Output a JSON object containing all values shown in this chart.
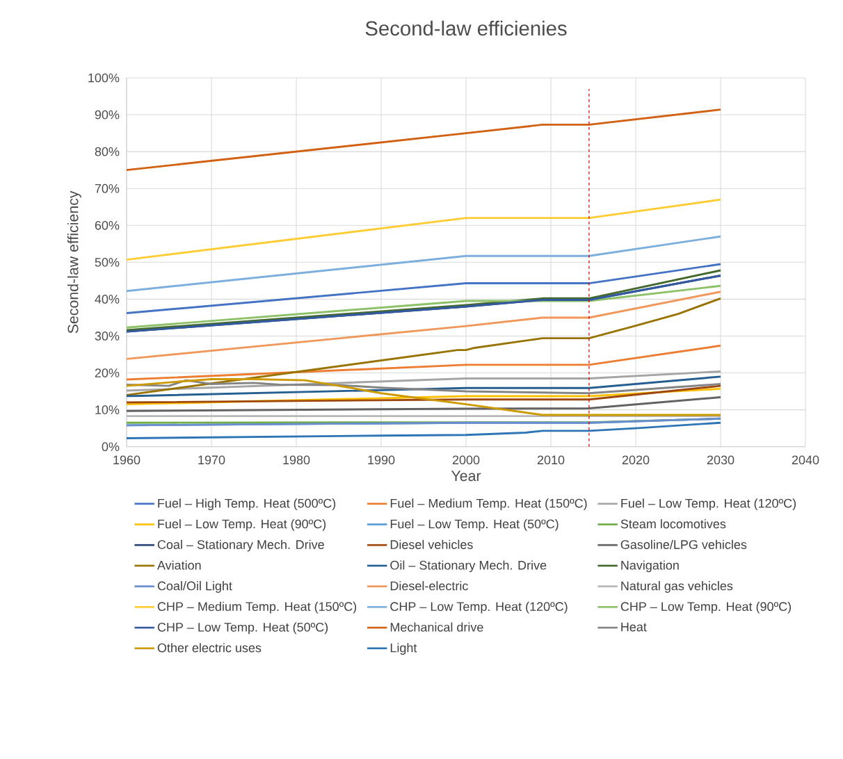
{
  "chart_data": {
    "type": "line",
    "title": "Second-law efficienies",
    "xlabel": "Year",
    "ylabel": "Second-law efficiency",
    "xlim": [
      1960,
      2040
    ],
    "xticks": [
      1960,
      1970,
      1980,
      1990,
      2000,
      2010,
      2020,
      2030,
      2040
    ],
    "ylim": [
      0,
      100
    ],
    "yticks": [
      {
        "value": 0,
        "label": "0%"
      },
      {
        "value": 10,
        "label": "10%"
      },
      {
        "value": 20,
        "label": "20%"
      },
      {
        "value": 30,
        "label": "30%"
      },
      {
        "value": 40,
        "label": "40%"
      },
      {
        "value": 50,
        "label": "50%"
      },
      {
        "value": 60,
        "label": "60%"
      },
      {
        "value": 70,
        "label": "70%"
      },
      {
        "value": 80,
        "label": "80%"
      },
      {
        "value": 90,
        "label": "90%"
      },
      {
        "value": 100,
        "label": "100%"
      }
    ],
    "grid": true,
    "legend": "bottom",
    "marker": "none",
    "line_style": "solid",
    "ref_lines": [
      {
        "axis": "x",
        "value": 2014.5,
        "color": "#C00000",
        "line_style": "dashed"
      }
    ],
    "series": [
      {
        "name": "Fuel – High Temp. Heat (500ºC)",
        "color": "#4472C4",
        "x": [
          1960,
          2000,
          2014.5,
          2030
        ],
        "values": [
          36.2,
          44.3,
          44.3,
          49.5
        ]
      },
      {
        "name": "Fuel – Medium Temp. Heat (150ºC)",
        "color": "#ED7D31",
        "x": [
          1960,
          2000,
          2014.5,
          2030
        ],
        "values": [
          18.2,
          22.2,
          22.2,
          27.4
        ]
      },
      {
        "name": "Fuel – Low Temp. Heat (120ºC)",
        "color": "#A5A5A5",
        "x": [
          1960,
          2000,
          2014.5,
          2030
        ],
        "values": [
          15.2,
          18.5,
          18.5,
          20.4
        ]
      },
      {
        "name": "Fuel – Low Temp. Heat (90ºC)",
        "color": "#FFC000",
        "x": [
          1960,
          2000,
          2014.5,
          2030
        ],
        "values": [
          11.5,
          13.7,
          13.7,
          15.7
        ]
      },
      {
        "name": "Fuel – Low Temp. Heat (50ºC)",
        "color": "#5B9BD5",
        "x": [
          1960,
          2000,
          2014.5,
          2030
        ],
        "values": [
          5.8,
          6.5,
          6.5,
          7.6
        ]
      },
      {
        "name": "Steam locomotives",
        "color": "#70AD47",
        "x": [
          1960,
          2000,
          2014.5,
          2030
        ],
        "values": [
          6.5,
          6.6,
          6.6,
          7.6
        ]
      },
      {
        "name": "Coal – Stationary Mech. Drive",
        "color": "#264478",
        "x": [
          1960,
          2000,
          2009,
          2014.5,
          2030
        ],
        "values": [
          31.2,
          38.0,
          39.8,
          39.8,
          46.4
        ]
      },
      {
        "name": "Diesel vehicles",
        "color": "#9E480E",
        "x": [
          1960,
          2000,
          2014.5,
          2030
        ],
        "values": [
          12,
          12.8,
          12.8,
          16.5
        ]
      },
      {
        "name": "Gasoline/LPG vehicles",
        "color": "#636363",
        "x": [
          1960,
          2000,
          2014.5,
          2030
        ],
        "values": [
          9.7,
          10.3,
          10.4,
          13.4
        ]
      },
      {
        "name": "Aviation",
        "color": "#997300",
        "x": [
          1960,
          1999,
          2000,
          2001,
          2009,
          2014.5,
          2020,
          2025,
          2030
        ],
        "values": [
          14,
          26.2,
          26.2,
          26.8,
          29.4,
          29.4,
          32.8,
          36,
          40.2
        ]
      },
      {
        "name": "Oil – Stationary Mech. Drive",
        "color": "#255E91",
        "x": [
          1960,
          2000,
          2014.5,
          2030
        ],
        "values": [
          13.7,
          15.9,
          15.9,
          19
        ]
      },
      {
        "name": "Navigation",
        "color": "#43682B",
        "x": [
          1960,
          2000,
          2009,
          2014.5,
          2030
        ],
        "values": [
          31.6,
          38.4,
          40.2,
          40.2,
          47.8
        ]
      },
      {
        "name": "Coal/Oil Light",
        "color": "#698ED0",
        "x": [
          1960,
          2000,
          2014.5,
          2030
        ],
        "values": [
          5.8,
          6.5,
          6.5,
          7.6
        ]
      },
      {
        "name": "Diesel-electric",
        "color": "#F1975A",
        "x": [
          1960,
          2000,
          2009,
          2014.5,
          2030
        ],
        "values": [
          23.8,
          32.7,
          35,
          35,
          42
        ]
      },
      {
        "name": "Natural gas vehicles",
        "color": "#B7B7B7",
        "x": [
          1960,
          2000,
          2014.5,
          2030
        ],
        "values": [
          8.3,
          8.3,
          8.3,
          8.3
        ]
      },
      {
        "name": "CHP – Medium Temp. Heat (150ºC)",
        "color": "#FFCD33",
        "x": [
          1960,
          2000,
          2014.5,
          2030
        ],
        "values": [
          50.7,
          62,
          62,
          67
        ]
      },
      {
        "name": "CHP – Low Temp. Heat (120ºC)",
        "color": "#7CAFDD",
        "x": [
          1960,
          2000,
          2014.5,
          2030
        ],
        "values": [
          42.2,
          51.7,
          51.7,
          57
        ]
      },
      {
        "name": "CHP – Low Temp. Heat (90ºC)",
        "color": "#8CC168",
        "x": [
          1960,
          2000,
          2014.5,
          2030
        ],
        "values": [
          32.3,
          39.5,
          39.5,
          43.6
        ]
      },
      {
        "name": "CHP – Low Temp. Heat (50ºC)",
        "color": "#335AA1",
        "x": [
          1960,
          2000,
          2009,
          2014.5,
          2030
        ],
        "values": [
          31.2,
          38.0,
          39.8,
          39.8,
          46.4
        ]
      },
      {
        "name": "Mechanical drive",
        "color": "#D26012",
        "x": [
          1960,
          2000,
          2009,
          2014.5,
          2030
        ],
        "values": [
          75,
          85,
          87.3,
          87.3,
          91.4
        ]
      },
      {
        "name": "Heat",
        "color": "#848484",
        "x": [
          1960,
          1965,
          1967,
          1970,
          1975,
          1978,
          1985,
          1990,
          2000,
          2014.5,
          2030
        ],
        "values": [
          16.8,
          16.5,
          18,
          17,
          17.3,
          16.8,
          16.7,
          16,
          15,
          14.5,
          17
        ]
      },
      {
        "name": "Other electric uses",
        "color": "#CC9A00",
        "x": [
          1960,
          1967,
          1970,
          1975,
          1981,
          1985,
          1990,
          2000,
          2009,
          2014.5,
          2030
        ],
        "values": [
          16.5,
          17.8,
          18.3,
          18.3,
          18,
          16.5,
          14.5,
          11.5,
          8.6,
          8.6,
          8.6
        ]
      },
      {
        "name": "Light",
        "color": "#2E75B6",
        "x": [
          1960,
          1990,
          2000,
          2007,
          2009,
          2014.5,
          2020,
          2030
        ],
        "values": [
          2.3,
          3.0,
          3.2,
          3.8,
          4.3,
          4.3,
          5,
          6.5
        ]
      }
    ]
  }
}
